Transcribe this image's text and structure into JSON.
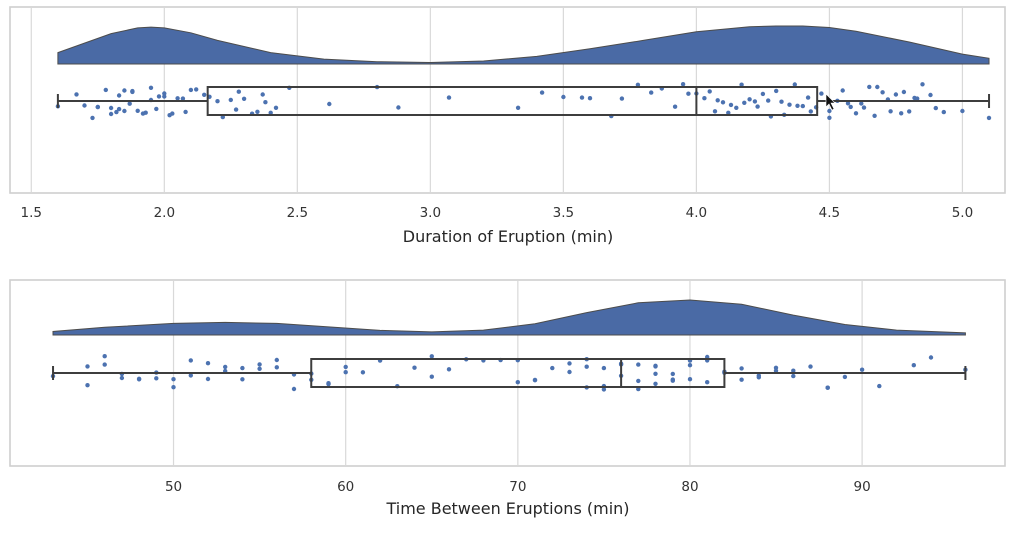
{
  "colors": {
    "fill": "#4a6aa5",
    "point": "#4c72b0"
  },
  "chart_data": [
    {
      "type": "scatter",
      "variant": "raincloud",
      "xlabel": "Duration of Eruption (min)",
      "xlim": [
        1.42,
        5.16
      ],
      "xticks": [
        1.5,
        2.0,
        2.5,
        3.0,
        3.5,
        4.0,
        4.5,
        5.0
      ],
      "tick_labels": [
        "1.5",
        "2.0",
        "2.5",
        "3.0",
        "3.5",
        "4.0",
        "4.5",
        "5.0"
      ],
      "grid": true,
      "box": {
        "min": 1.6,
        "q1": 2.163,
        "median": 4.0,
        "q3": 4.454,
        "max": 5.1
      },
      "density": {
        "x": [
          1.6,
          1.7,
          1.8,
          1.9,
          1.95,
          2.0,
          2.1,
          2.2,
          2.4,
          2.6,
          2.8,
          3.0,
          3.2,
          3.4,
          3.6,
          3.8,
          4.0,
          4.2,
          4.3,
          4.4,
          4.5,
          4.6,
          4.8,
          5.0,
          5.1
        ],
        "y": [
          0.3,
          0.55,
          0.8,
          0.95,
          0.97,
          0.95,
          0.82,
          0.62,
          0.3,
          0.13,
          0.06,
          0.04,
          0.08,
          0.2,
          0.4,
          0.62,
          0.85,
          0.98,
          1.0,
          1.0,
          0.96,
          0.86,
          0.58,
          0.26,
          0.15
        ]
      },
      "points": [
        1.6,
        1.67,
        1.7,
        1.73,
        1.75,
        1.75,
        1.78,
        1.8,
        1.8,
        1.82,
        1.83,
        1.83,
        1.85,
        1.85,
        1.87,
        1.88,
        1.88,
        1.9,
        1.92,
        1.93,
        1.95,
        1.95,
        1.97,
        1.98,
        2.0,
        2.0,
        2.02,
        2.03,
        2.05,
        2.07,
        2.08,
        2.1,
        2.12,
        2.15,
        2.17,
        2.2,
        2.22,
        2.25,
        2.27,
        2.28,
        2.3,
        2.33,
        2.35,
        2.37,
        2.38,
        2.4,
        2.42,
        2.47,
        2.62,
        2.8,
        2.88,
        3.07,
        3.33,
        3.42,
        3.5,
        3.57,
        3.6,
        3.68,
        3.72,
        3.78,
        3.83,
        3.87,
        3.92,
        3.95,
        3.97,
        4.0,
        4.03,
        4.05,
        4.07,
        4.08,
        4.1,
        4.12,
        4.13,
        4.15,
        4.17,
        4.18,
        4.2,
        4.22,
        4.23,
        4.25,
        4.27,
        4.28,
        4.3,
        4.32,
        4.33,
        4.35,
        4.37,
        4.38,
        4.4,
        4.42,
        4.43,
        4.45,
        4.47,
        4.5,
        4.5,
        4.53,
        4.55,
        4.57,
        4.58,
        4.6,
        4.62,
        4.63,
        4.65,
        4.67,
        4.68,
        4.7,
        4.72,
        4.73,
        4.75,
        4.77,
        4.78,
        4.8,
        4.82,
        4.83,
        4.85,
        4.88,
        4.9,
        4.93,
        5.0,
        5.1
      ]
    },
    {
      "type": "scatter",
      "variant": "raincloud",
      "xlabel": "Time Between Eruptions (min)",
      "xlim": [
        40.5,
        98.3
      ],
      "xticks": [
        50,
        60,
        70,
        80,
        90
      ],
      "tick_labels": [
        "50",
        "60",
        "70",
        "80",
        "90"
      ],
      "grid": true,
      "box": {
        "min": 43,
        "q1": 58,
        "median": 76,
        "q3": 82,
        "max": 96
      },
      "density": {
        "x": [
          43,
          46,
          50,
          53,
          56,
          59,
          62,
          65,
          68,
          71,
          74,
          77,
          80,
          83,
          86,
          89,
          92,
          96
        ],
        "y": [
          0.1,
          0.22,
          0.33,
          0.36,
          0.33,
          0.23,
          0.13,
          0.09,
          0.14,
          0.32,
          0.64,
          0.92,
          1.0,
          0.88,
          0.57,
          0.3,
          0.14,
          0.06
        ]
      },
      "points": [
        43,
        45,
        45,
        46,
        46,
        47,
        47,
        48,
        48,
        49,
        49,
        50,
        50,
        51,
        51,
        52,
        52,
        53,
        53,
        54,
        54,
        55,
        55,
        56,
        56,
        57,
        57,
        58,
        58,
        59,
        59,
        60,
        60,
        61,
        62,
        63,
        64,
        65,
        65,
        66,
        67,
        68,
        69,
        70,
        70,
        71,
        71,
        72,
        73,
        73,
        74,
        74,
        74,
        75,
        75,
        75,
        76,
        76,
        76,
        77,
        77,
        77,
        78,
        78,
        78,
        78,
        79,
        79,
        79,
        80,
        80,
        80,
        81,
        81,
        81,
        82,
        82,
        83,
        83,
        84,
        84,
        85,
        85,
        86,
        86,
        87,
        88,
        88,
        89,
        90,
        91,
        93,
        94,
        96
      ]
    }
  ]
}
